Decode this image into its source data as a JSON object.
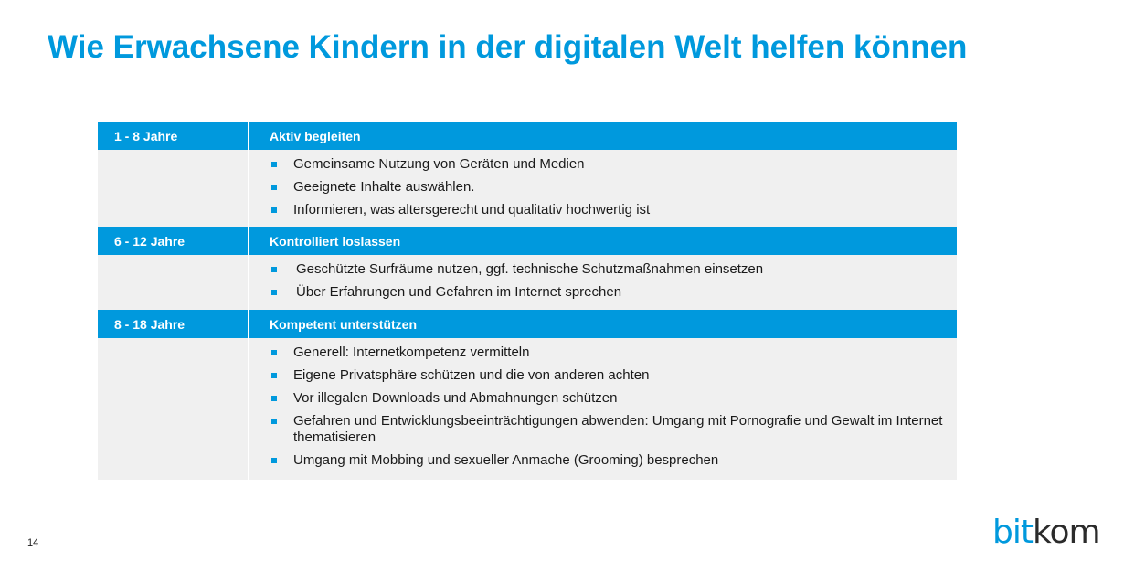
{
  "title": "Wie Erwachsene Kindern in der digitalen Welt helfen können",
  "sections": [
    {
      "age": "1 - 8 Jahre",
      "heading": "Aktiv begleiten",
      "items": [
        "Gemeinsame Nutzung von Geräten und Medien",
        "Geeignete Inhalte auswählen.",
        "Informieren, was altersgerecht und qualitativ hochwertig ist"
      ]
    },
    {
      "age": "6 - 12 Jahre",
      "heading": "Kontrolliert loslassen",
      "items": [
        "Geschützte Surfräume nutzen, ggf. technische Schutzmaßnahmen einsetzen",
        "Über Erfahrungen und Gefahren im Internet sprechen"
      ]
    },
    {
      "age": "8 - 18 Jahre",
      "heading": "Kompetent unterstützen",
      "items": [
        "Generell: Internetkompetenz vermitteln",
        "Eigene Privatsphäre schützen und die von anderen achten",
        "Vor illegalen Downloads und Abmahnungen schützen",
        "Gefahren und Entwicklungsbeeinträchtigungen abwenden: Umgang mit Pornografie und Gewalt im Internet thematisieren",
        "Umgang mit Mobbing und sexueller Anmache (Grooming) besprechen"
      ]
    }
  ],
  "footer": {
    "page_number": "14",
    "logo_part1": "bit",
    "logo_part2": "kom"
  },
  "colors": {
    "accent": "#0099dd",
    "row_background": "#f0f0f0"
  }
}
